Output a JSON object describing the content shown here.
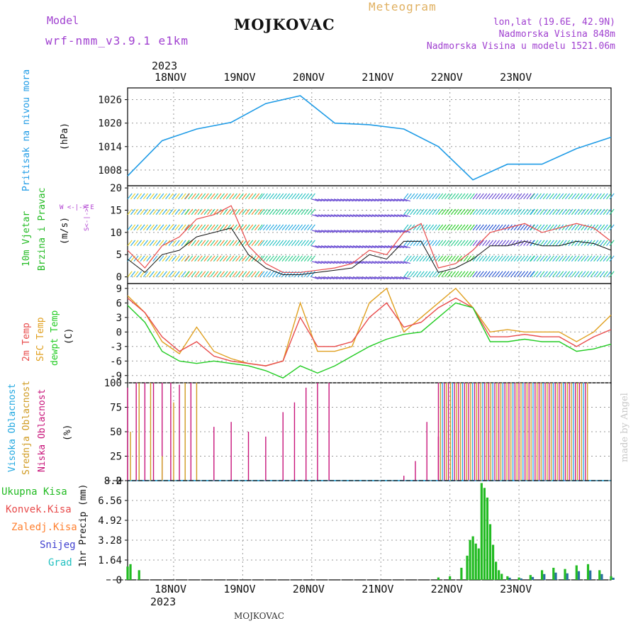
{
  "header": {
    "model_label": "Model",
    "model_name": "wrf-nmm_v3.9.1 e1km",
    "station": "MOJKOVAC",
    "meteogram": "Meteogram",
    "lonlat": "lon,lat (19.6E, 42.9N)",
    "elevation": "Nadmorska Visina 848m",
    "model_elevation": "Nadmorska Visina u modelu 1521.06m",
    "year_top": "2023",
    "year_bottom": "2023",
    "footer_station": "MOJKOVAC",
    "watermark": "made by Angel"
  },
  "colors": {
    "pressure": "#1e9be6",
    "wind_title": "#22bb22",
    "wind_dir": "#b040d0",
    "temp2m": "#e84a4a",
    "sfc": "#e0a020",
    "dew": "#22cc22",
    "cloud_high": "#22a8e0",
    "cloud_mid": "#d09a20",
    "cloud_low": "#c8147a",
    "rain_total": "#22bb22",
    "rain_conv": "#e84a4a",
    "rain_freeze": "#ff8030",
    "snow": "#4040d0",
    "hail": "#20c0c0",
    "header_purple": "#a040d0",
    "header_orange": "#e0b060"
  },
  "labels": {
    "pressure": [
      "Pritisak na nivou mora",
      "(hPa)"
    ],
    "wind": [
      "10m Vjetar",
      "Brzina i Pravac",
      "(m/s)"
    ],
    "wind_dir_glyph": "W <-|-> E",
    "wind_dir_vertical": "S<-|->N",
    "temp": [
      "2m Temp",
      "SFC Temp",
      "dewpt Temp",
      "(C)"
    ],
    "cloud": [
      "Visoka Oblacnost",
      "Srednja Oblacnost",
      "Niska Oblacnost",
      "(%)"
    ],
    "precip_unit": "1hr Precip (mm)",
    "precip_legend": [
      "Ukupna Kisa",
      "Konvek.Kisa",
      "Zaledj.Kisa",
      "Snijeg",
      "Grad"
    ]
  },
  "chart_data": [
    {
      "type": "line",
      "title": "Pritisak na nivou mora",
      "ylabel": "(hPa)",
      "x_ticks": [
        "18NOV",
        "19NOV",
        "20NOV",
        "21NOV",
        "22NOV",
        "23NOV"
      ],
      "x_hours": [
        0,
        12,
        24,
        36,
        48,
        60,
        72,
        84,
        96,
        108,
        120,
        132,
        144,
        156,
        168
      ],
      "y_ticks": [
        1008,
        1014,
        1020,
        1026
      ],
      "ylim": [
        1004,
        1029
      ],
      "series": [
        {
          "values": [
            1006.5,
            1015.5,
            1018.5,
            1020.2,
            1025.0,
            1027.0,
            1020.0,
            1019.6,
            1018.5,
            1014.0,
            1005.5,
            1009.5,
            1009.5,
            1013.5,
            1016.4
          ]
        }
      ]
    },
    {
      "type": "line",
      "title": "10m Vjetar Brzina i Pravac",
      "ylabel": "(m/s)",
      "y_ticks": [
        0,
        5,
        10,
        15,
        20
      ],
      "ylim": [
        -1.5,
        20.5
      ],
      "x_hours": [
        0,
        6,
        12,
        18,
        24,
        30,
        36,
        42,
        48,
        54,
        60,
        66,
        72,
        78,
        84,
        90,
        96,
        102,
        108,
        114,
        120,
        126,
        132,
        138,
        144,
        150,
        156,
        162,
        168
      ],
      "series": [
        {
          "values": [
            6,
            2,
            7,
            9,
            13,
            14,
            16,
            7,
            3,
            1,
            1,
            1.5,
            2,
            3,
            6,
            5,
            10,
            12,
            2,
            3,
            6,
            10,
            11,
            12,
            10,
            11,
            12,
            11,
            8
          ]
        },
        {
          "values": [
            4,
            1,
            5,
            6,
            9,
            10,
            11,
            5,
            2,
            0.5,
            0.5,
            1,
            1.5,
            2,
            5,
            4,
            8,
            8,
            1,
            2,
            4,
            7,
            7,
            8,
            7,
            7,
            8,
            7.5,
            6
          ]
        }
      ]
    },
    {
      "type": "line",
      "title": "Temp",
      "ylabel": "(C)",
      "y_ticks": [
        -9,
        -6,
        -3,
        0,
        3,
        6,
        9
      ],
      "ylim": [
        -10.5,
        10
      ],
      "x_hours": [
        0,
        6,
        12,
        18,
        24,
        30,
        36,
        42,
        48,
        54,
        60,
        66,
        72,
        78,
        84,
        90,
        96,
        102,
        108,
        114,
        120,
        126,
        132,
        138,
        144,
        150,
        156,
        162,
        168
      ],
      "series": [
        {
          "name": "2m Temp",
          "values": [
            7,
            4,
            -1,
            -4,
            -2,
            -5,
            -6,
            -6.5,
            -7,
            -6,
            3,
            -3,
            -3,
            -2,
            3,
            6,
            1,
            2,
            5,
            7,
            5,
            -1,
            -1,
            -0.5,
            -1,
            -1,
            -3,
            -1,
            0.5
          ]
        },
        {
          "name": "SFC Temp",
          "values": [
            7.5,
            4,
            -2,
            -4.5,
            1,
            -4,
            -5.5,
            -6.5,
            -7,
            -6,
            6,
            -4,
            -4,
            -3,
            6,
            9,
            0,
            3,
            6,
            9,
            5,
            0,
            0.5,
            0,
            0,
            0,
            -2,
            0,
            3.5
          ]
        },
        {
          "name": "dewpt Temp",
          "values": [
            5.5,
            2,
            -4,
            -6,
            -6.5,
            -6,
            -6.5,
            -7,
            -8,
            -9.5,
            -7,
            -8.5,
            -7,
            -5,
            -3,
            -1.5,
            -0.5,
            0,
            3,
            6,
            5,
            -2,
            -2,
            -1.5,
            -2,
            -2,
            -4,
            -3.5,
            -2.5
          ]
        }
      ]
    },
    {
      "type": "bar",
      "title": "Oblacnost",
      "ylabel": "(%)",
      "y_ticks": [
        0,
        25,
        50,
        75,
        100
      ],
      "ylim": [
        0,
        100
      ],
      "series": [
        {
          "name": "Niska Oblacnost",
          "x_hours": [
            0,
            3,
            6,
            9,
            12,
            15,
            18,
            22,
            30,
            36,
            42,
            48,
            54,
            58,
            62,
            66,
            70,
            96,
            100,
            104,
            108
          ],
          "values": [
            95,
            100,
            100,
            100,
            100,
            100,
            98,
            100,
            55,
            60,
            50,
            45,
            70,
            80,
            95,
            100,
            100,
            5,
            20,
            60,
            45
          ]
        },
        {
          "name": "Srednja Oblacnost",
          "x_hours": [
            1,
            4,
            8,
            12,
            16,
            20,
            24
          ],
          "values": [
            50,
            100,
            100,
            25,
            80,
            100,
            100
          ]
        }
      ],
      "dense_block_hours": [
        108,
        160
      ],
      "dense_block_value": 100
    },
    {
      "type": "bar",
      "title": "1hr Precip",
      "ylabel": "(mm)",
      "y_ticks": [
        0,
        1.64,
        3.28,
        4.92,
        6.56,
        8.2
      ],
      "ylim": [
        0,
        8.2
      ],
      "series": [
        {
          "name": "Ukupna Kisa",
          "x_hours": [
            108,
            112,
            116,
            118,
            119,
            120,
            121,
            122,
            123,
            124,
            125,
            126,
            127,
            128,
            129,
            130,
            132,
            136,
            140,
            144,
            148,
            152,
            156,
            160,
            164,
            168
          ],
          "values": [
            0.2,
            0.3,
            1.0,
            2.0,
            3.3,
            3.6,
            3.0,
            2.6,
            8.0,
            7.6,
            6.8,
            4.6,
            2.9,
            1.5,
            0.8,
            0.5,
            0.3,
            0.2,
            0.4,
            0.8,
            1.0,
            0.9,
            1.2,
            1.3,
            0.8,
            0.3
          ]
        },
        {
          "name": "Konvek.Kisa",
          "x_hours": [
            0,
            1,
            4
          ],
          "values": [
            1.1,
            1.3,
            0.8
          ]
        }
      ]
    }
  ]
}
